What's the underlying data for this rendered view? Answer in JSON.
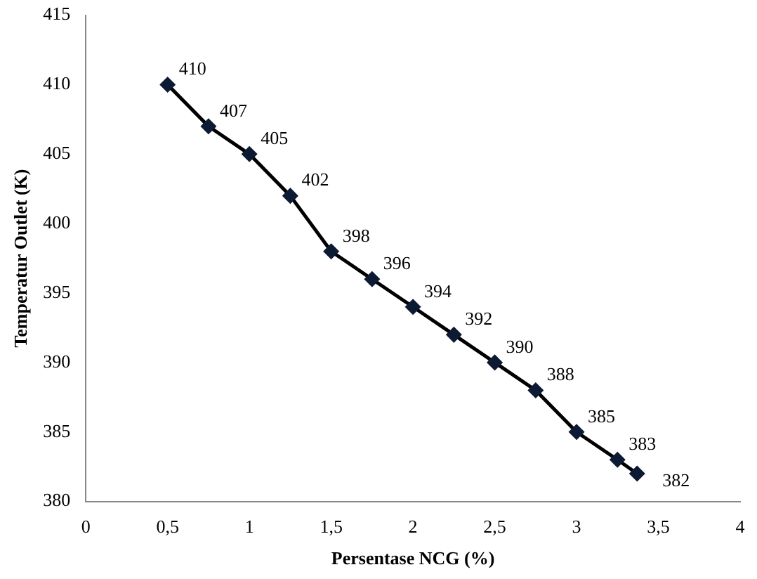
{
  "chart_data": {
    "type": "line",
    "xlabel": "Persentase NCG (%)",
    "ylabel": "Temperatur Outlet (K)",
    "x": [
      0.5,
      0.75,
      1,
      1.25,
      1.5,
      1.75,
      2,
      2.25,
      2.5,
      2.75,
      3,
      3.25,
      3.37
    ],
    "series": [
      {
        "color": "#0d1a33",
        "values": [
          410,
          407,
          405,
          402,
          398,
          396,
          394,
          392,
          390,
          388,
          385,
          383,
          382
        ]
      }
    ],
    "xlim": [
      0,
      4
    ],
    "xticks": [
      0,
      {
        "value": 0.5,
        "label": "0,5"
      },
      1,
      {
        "value": 1.5,
        "label": "1,5"
      },
      2,
      {
        "value": 2.5,
        "label": "2,5"
      },
      3,
      {
        "value": 3.5,
        "label": "3,5"
      },
      4
    ],
    "ylim": [
      380,
      415
    ],
    "yticks": [
      380,
      385,
      390,
      395,
      400,
      405,
      410,
      415
    ],
    "grid": false,
    "legend": false,
    "marker": "diamond",
    "line_style": "solid",
    "data_labels": true
  }
}
